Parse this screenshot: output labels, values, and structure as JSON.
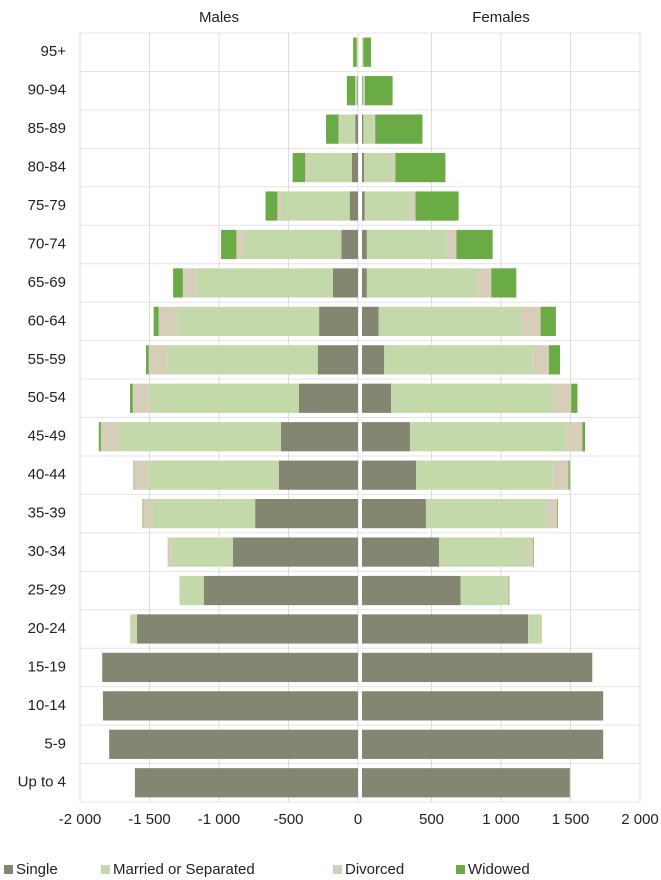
{
  "chart_data": {
    "type": "bar",
    "stacked": true,
    "orientation": "horizontal",
    "categories": [
      "95+",
      "90-94",
      "85-89",
      "80-84",
      "75-79",
      "70-74",
      "65-69",
      "60-64",
      "55-59",
      "50-54",
      "45-49",
      "40-44",
      "35-39",
      "30-34",
      "25-29",
      "20-24",
      "15-19",
      "10-14",
      "5-9",
      "Up to 4"
    ],
    "panels": [
      {
        "title": "Males",
        "xlim": [
          -2000,
          0
        ],
        "xticks": [
          {
            "value": -2000,
            "label": "-2 000"
          },
          {
            "value": -1500,
            "label": "-1 500"
          },
          {
            "value": -1000,
            "label": "-1 000"
          },
          -500,
          0
        ]
      },
      {
        "title": "Females",
        "xlim": [
          0,
          2000
        ],
        "xticks": [
          500,
          {
            "value": 1000,
            "label": "1 000"
          },
          {
            "value": 1500,
            "label": "1 500"
          },
          {
            "value": 2000,
            "label": "2 000"
          }
        ]
      }
    ],
    "series": [
      {
        "name": "Single",
        "color": "#858672",
        "values": [
          [
            0,
            -5,
            -20,
            -45,
            -60,
            -120,
            -180,
            -280,
            -290,
            -425,
            -555,
            -570,
            -740,
            -900,
            -1110,
            -1590,
            -1840,
            -1835,
            -1790,
            -1605
          ],
          [
            0,
            5,
            10,
            15,
            20,
            35,
            35,
            120,
            160,
            210,
            345,
            390,
            460,
            555,
            710,
            1195,
            1655,
            1735,
            1735,
            1495
          ]
        ]
      },
      {
        "name": "Married or Separated",
        "color": "#c3d9a9",
        "values": [
          [
            -5,
            -10,
            -110,
            -315,
            -490,
            -700,
            -980,
            -1020,
            -1080,
            -1080,
            -1160,
            -940,
            -735,
            -440,
            -165,
            -45,
            0,
            0,
            0,
            0
          ],
          [
            5,
            10,
            70,
            205,
            330,
            575,
            785,
            1020,
            1065,
            1165,
            1120,
            980,
            865,
            625,
            330,
            95,
            5,
            0,
            0,
            0
          ]
        ]
      },
      {
        "name": "Divorced",
        "color": "#d6ceb9",
        "values": [
          [
            -5,
            -5,
            -10,
            -20,
            -30,
            -55,
            -100,
            -135,
            -135,
            -115,
            -135,
            -100,
            -70,
            -30,
            -10,
            -5,
            0,
            0,
            0,
            0
          ],
          [
            5,
            5,
            15,
            20,
            35,
            70,
            110,
            145,
            120,
            130,
            120,
            115,
            80,
            50,
            15,
            5,
            0,
            0,
            0,
            0
          ]
        ]
      },
      {
        "name": "Widowed",
        "color": "#6aab45",
        "values": [
          [
            -25,
            -60,
            -90,
            -90,
            -85,
            -110,
            -70,
            -35,
            -20,
            -20,
            -15,
            -5,
            -5,
            0,
            0,
            0,
            0,
            0,
            0,
            0
          ],
          [
            55,
            200,
            340,
            360,
            310,
            260,
            180,
            110,
            80,
            45,
            20,
            10,
            5,
            5,
            5,
            0,
            0,
            0,
            0,
            0
          ]
        ]
      }
    ],
    "grid": true,
    "legend": "bottom"
  }
}
